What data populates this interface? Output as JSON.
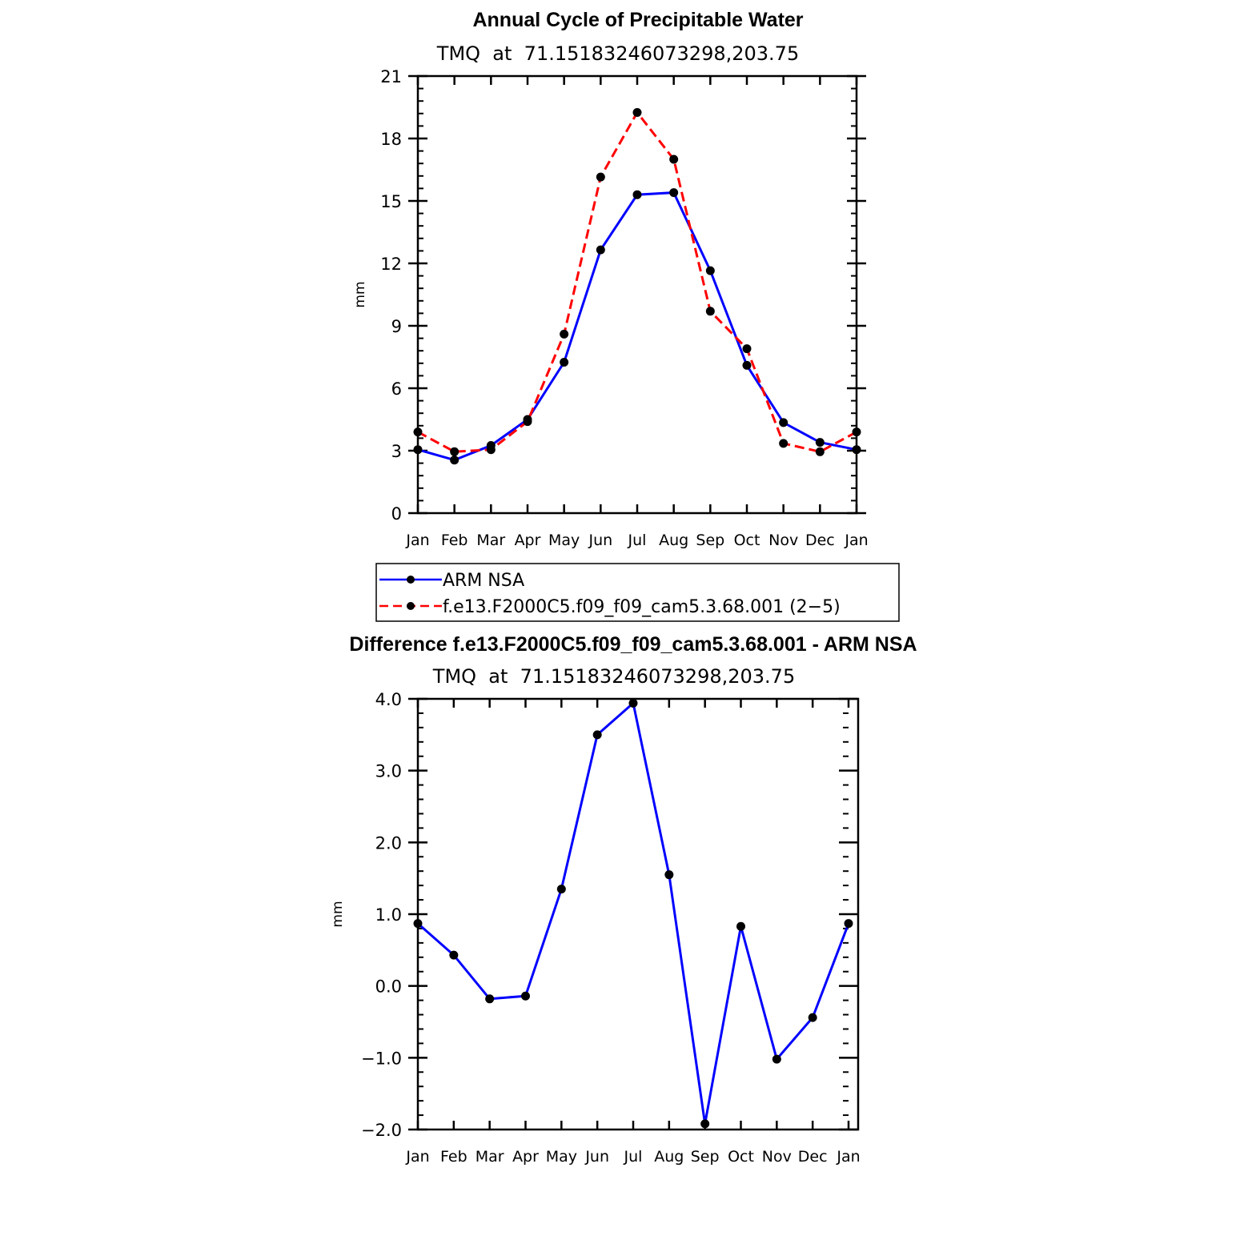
{
  "chart_data": [
    {
      "type": "line",
      "title": "Annual Cycle of Precipitable Water",
      "subtitle": "TMQ  at  71.15183246073298,203.75",
      "xlabel": "",
      "ylabel": "mm",
      "categories": [
        "Jan",
        "Feb",
        "Mar",
        "Apr",
        "May",
        "Jun",
        "Jul",
        "Aug",
        "Sep",
        "Oct",
        "Nov",
        "Dec",
        "Jan"
      ],
      "ylim": [
        0,
        21
      ],
      "yticks": [
        "0",
        "3",
        "6",
        "9",
        "12",
        "15",
        "18",
        "21"
      ],
      "series": [
        {
          "name": "ARM NSA",
          "color": "#0000ff",
          "dash": "solid",
          "values": [
            3.05,
            2.55,
            3.25,
            4.5,
            7.25,
            12.65,
            15.3,
            15.4,
            11.65,
            7.1,
            4.35,
            3.4,
            3.05
          ]
        },
        {
          "name": "f.e13.F2000C5.f09_f09_cam5.3.68.001 (2−5)",
          "color": "#ff0000",
          "dash": "dashed",
          "values": [
            3.9,
            2.95,
            3.05,
            4.4,
            8.6,
            16.15,
            19.25,
            17.0,
            9.7,
            7.9,
            3.35,
            2.95,
            3.9
          ]
        }
      ],
      "legend": "below"
    },
    {
      "type": "line",
      "title": "Difference f.e13.F2000C5.f09_f09_cam5.3.68.001 - ARM NSA",
      "subtitle": "TMQ  at  71.15183246073298,203.75",
      "xlabel": "",
      "ylabel": "mm",
      "categories": [
        "Jan",
        "Feb",
        "Mar",
        "Apr",
        "May",
        "Jun",
        "Jul",
        "Aug",
        "Sep",
        "Oct",
        "Nov",
        "Dec",
        "Jan"
      ],
      "ylim": [
        -2.0,
        4.0
      ],
      "yticks": [
        "−2.0",
        "−1.0",
        "0.0",
        "1.0",
        "2.0",
        "3.0",
        "4.0"
      ],
      "series": [
        {
          "color": "#0000ff",
          "dash": "solid",
          "values": [
            0.87,
            0.43,
            -0.18,
            -0.14,
            1.35,
            3.5,
            3.94,
            1.55,
            -1.92,
            0.83,
            -1.02,
            -0.44,
            0.87
          ]
        }
      ]
    }
  ]
}
